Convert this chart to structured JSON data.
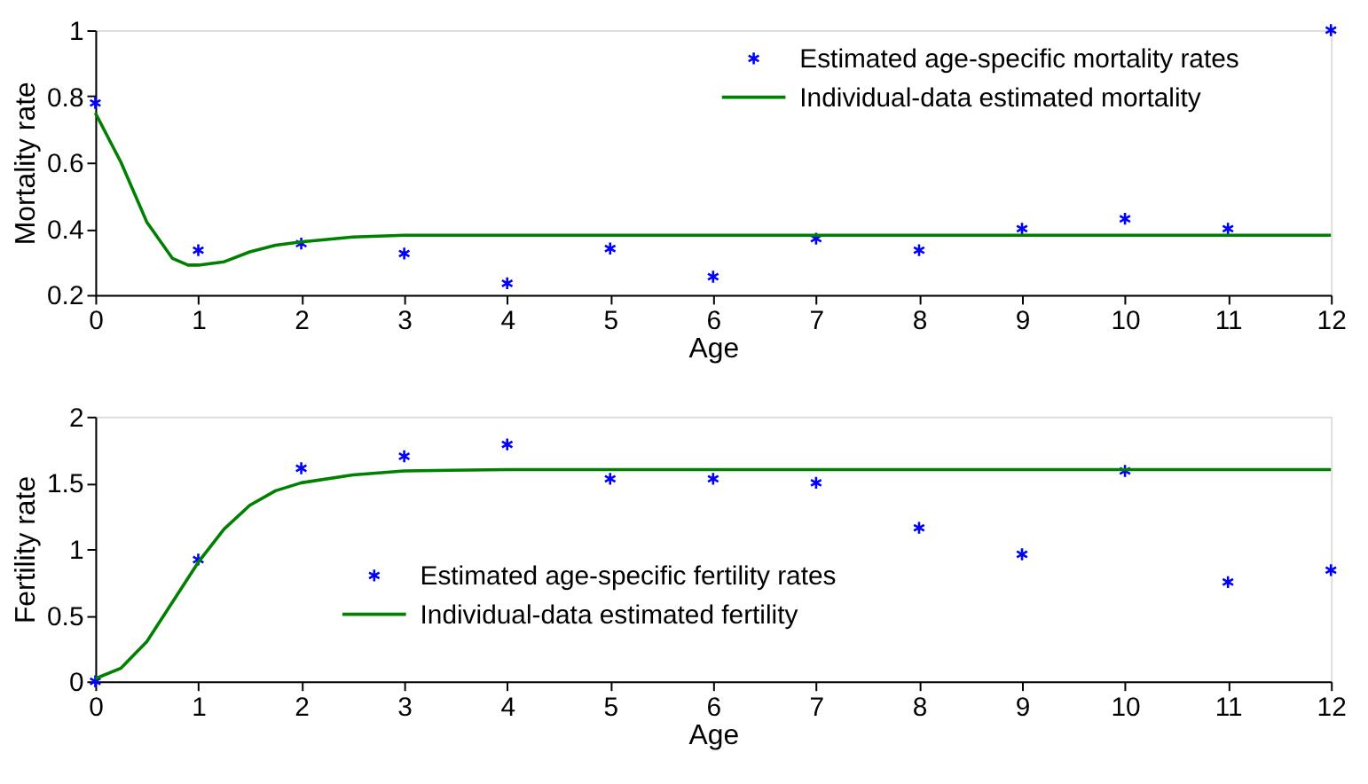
{
  "chart_data": [
    {
      "type": "scatter",
      "xlabel": "Age",
      "ylabel": "Mortality rate",
      "xlim": [
        0,
        12
      ],
      "ylim": [
        0.2,
        1
      ],
      "xticks": [
        0,
        1,
        2,
        3,
        4,
        5,
        6,
        7,
        8,
        9,
        10,
        11,
        12
      ],
      "yticks": [
        0.2,
        0.4,
        0.6,
        0.8,
        1
      ],
      "grid": false,
      "legend": "top right",
      "series": [
        {
          "name": "Estimated age-specific mortality rates",
          "marker": "cross",
          "color": "#0000ff",
          "x": [
            0,
            1,
            2,
            3,
            4,
            5,
            6,
            7,
            8,
            9,
            10,
            11,
            12
          ],
          "values": [
            0.78,
            0.335,
            0.355,
            0.325,
            0.235,
            0.34,
            0.255,
            0.37,
            0.335,
            0.4,
            0.43,
            0.4,
            1.0
          ]
        },
        {
          "name": "Individual-data estimated mortality",
          "type": "line",
          "color": "#008000",
          "x": [
            0,
            0.25,
            0.5,
            0.75,
            0.9,
            1,
            1.25,
            1.5,
            1.75,
            2,
            2.5,
            3,
            4,
            12
          ],
          "values": [
            0.75,
            0.6,
            0.42,
            0.31,
            0.29,
            0.29,
            0.3,
            0.33,
            0.35,
            0.36,
            0.375,
            0.38,
            0.38,
            0.38
          ]
        }
      ]
    },
    {
      "type": "scatter",
      "xlabel": "Age",
      "ylabel": "Fertility rate",
      "xlim": [
        0,
        12
      ],
      "ylim": [
        0,
        2
      ],
      "xticks": [
        0,
        1,
        2,
        3,
        4,
        5,
        6,
        7,
        8,
        9,
        10,
        11,
        12
      ],
      "yticks": [
        0,
        0.5,
        1,
        1.5,
        2
      ],
      "grid": false,
      "legend": "left",
      "series": [
        {
          "name": "Estimated age-specific fertility rates",
          "marker": "cross",
          "color": "#0000ff",
          "x": [
            0,
            1,
            2,
            3,
            4,
            5,
            6,
            7,
            8,
            9,
            10,
            11,
            12
          ],
          "values": [
            0,
            0.92,
            1.61,
            1.7,
            1.79,
            1.53,
            1.53,
            1.5,
            1.16,
            0.96,
            1.59,
            0.75,
            0.84
          ]
        },
        {
          "name": "Individual-data estimated fertility",
          "type": "line",
          "color": "#008000",
          "x": [
            0,
            0.25,
            0.5,
            0.75,
            1,
            1.25,
            1.5,
            1.75,
            2,
            2.5,
            3,
            4,
            12
          ],
          "values": [
            0.02,
            0.1,
            0.3,
            0.6,
            0.9,
            1.15,
            1.33,
            1.44,
            1.5,
            1.56,
            1.59,
            1.6,
            1.6
          ]
        }
      ]
    }
  ]
}
